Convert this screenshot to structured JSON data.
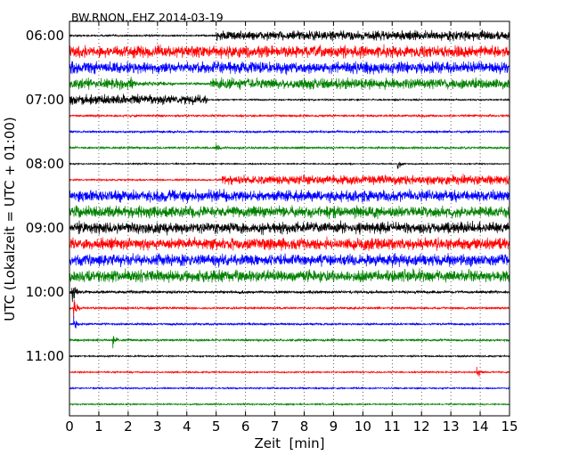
{
  "chart_data": {
    "type": "line",
    "title": "BW.RNON..EHZ 2014-03-19",
    "xlabel": "Zeit  [min]",
    "ylabel": "UTC (Lokalzeit = UTC + 01:00)",
    "xlim": [
      0,
      15
    ],
    "xticks": [
      "0",
      "1",
      "2",
      "3",
      "4",
      "5",
      "6",
      "7",
      "8",
      "9",
      "10",
      "11",
      "12",
      "13",
      "14",
      "15"
    ],
    "ytick_labels": [
      "06:00",
      "07:00",
      "08:00",
      "09:00",
      "10:00",
      "11:00"
    ],
    "grid": "vertical dotted lines at each minute",
    "colors": [
      "#000000",
      "#ff0000",
      "#0000ff",
      "#008000"
    ],
    "traces": [
      {
        "start": "06:00",
        "segments": [
          [
            0,
            5,
            0.08
          ],
          [
            5,
            15,
            0.45
          ]
        ]
      },
      {
        "start": "06:15",
        "segments": [
          [
            0,
            15,
            0.55
          ]
        ]
      },
      {
        "start": "06:30",
        "segments": [
          [
            0,
            15,
            0.55
          ]
        ]
      },
      {
        "start": "06:45",
        "segments": [
          [
            0,
            2.2,
            0.5
          ],
          [
            2.2,
            3.6,
            0.2
          ],
          [
            3.6,
            4.8,
            0.12
          ],
          [
            4.8,
            15,
            0.5
          ]
        ]
      },
      {
        "start": "07:00",
        "segments": [
          [
            0,
            4.7,
            0.45
          ],
          [
            4.7,
            15,
            0.07
          ]
        ]
      },
      {
        "start": "07:15",
        "segments": [
          [
            0,
            15,
            0.1
          ]
        ]
      },
      {
        "start": "07:30",
        "segments": [
          [
            0,
            15,
            0.1
          ]
        ]
      },
      {
        "start": "07:45",
        "segments": [
          [
            0,
            15,
            0.1
          ]
        ]
      },
      {
        "start": "08:00",
        "segments": [
          [
            0,
            15,
            0.06
          ]
        ]
      },
      {
        "start": "08:15",
        "segments": [
          [
            0,
            5.2,
            0.08
          ],
          [
            5.2,
            15,
            0.45
          ]
        ]
      },
      {
        "start": "08:30",
        "segments": [
          [
            0,
            15,
            0.55
          ]
        ]
      },
      {
        "start": "08:45",
        "segments": [
          [
            0,
            15,
            0.55
          ]
        ]
      },
      {
        "start": "09:00",
        "segments": [
          [
            0,
            15,
            0.55
          ]
        ]
      },
      {
        "start": "09:15",
        "segments": [
          [
            0,
            15,
            0.55
          ]
        ]
      },
      {
        "start": "09:30",
        "segments": [
          [
            0,
            15,
            0.55
          ]
        ]
      },
      {
        "start": "09:45",
        "segments": [
          [
            0,
            15,
            0.55
          ]
        ]
      },
      {
        "start": "10:00",
        "segments": [
          [
            0,
            15,
            0.14
          ]
        ]
      },
      {
        "start": "10:15",
        "segments": [
          [
            0,
            15,
            0.1
          ]
        ]
      },
      {
        "start": "10:30",
        "segments": [
          [
            0,
            15,
            0.1
          ]
        ]
      },
      {
        "start": "10:45",
        "segments": [
          [
            0,
            15,
            0.1
          ]
        ]
      },
      {
        "start": "11:00",
        "segments": [
          [
            0,
            15,
            0.07
          ]
        ]
      },
      {
        "start": "11:15",
        "segments": [
          [
            0,
            15,
            0.07
          ]
        ]
      },
      {
        "start": "11:30",
        "segments": [
          [
            0,
            15,
            0.07
          ]
        ]
      },
      {
        "start": "11:45",
        "segments": [
          [
            0,
            15,
            0.07
          ]
        ]
      }
    ],
    "events": [
      {
        "start": "06:45",
        "x": 2.1,
        "amplitude": 0.8
      },
      {
        "start": "07:45",
        "x": 5.0,
        "amplitude": 0.5
      },
      {
        "start": "08:00",
        "x": 11.2,
        "amplitude": 0.6
      },
      {
        "start": "10:00",
        "x": 0.1,
        "amplitude": 1.3
      },
      {
        "start": "10:15",
        "x": 0.15,
        "amplitude": 1.0
      },
      {
        "start": "10:30",
        "x": 0.15,
        "amplitude": 1.0
      },
      {
        "start": "10:45",
        "x": 1.5,
        "amplitude": 0.7
      },
      {
        "start": "11:15",
        "x": 13.9,
        "amplitude": 0.6
      }
    ]
  }
}
